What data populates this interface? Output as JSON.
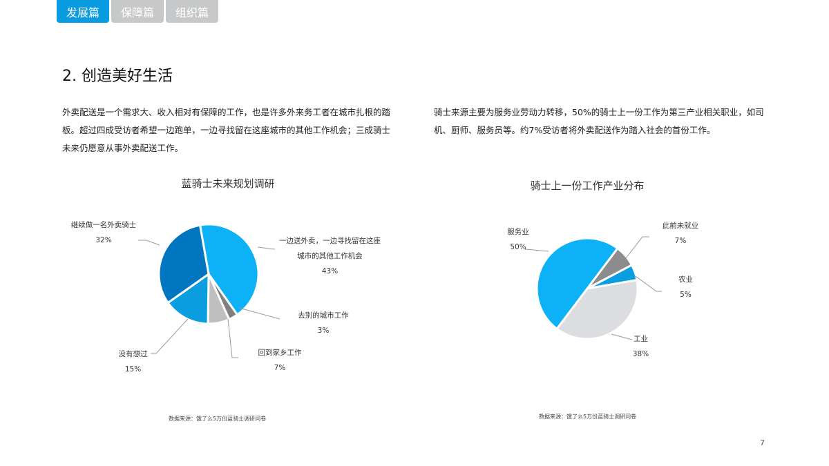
{
  "tabs": [
    {
      "label": "发展篇",
      "active": true
    },
    {
      "label": "保障篇"
    },
    {
      "label": "组织篇"
    }
  ],
  "heading": "2. 创造美好生活",
  "left_text": "外卖配送是一个需求大、收入相对有保障的工作，也是许多外来务工者在城市扎根的踏板。超过四成受访者希望一边跑单，一边寻找留在这座城市的其他工作机会；三成骑士未来仍愿意从事外卖配送工作。",
  "right_text": "骑士来源主要为服务业劳动力转移，50%的骑士上一份工作为第三产业相关职业，如司机、厨师、服务员等。约7%受访者将外卖配送作为踏入社会的首份工作。",
  "source": "数据来源：饿了么5万份蓝骑士调研问卷",
  "page_number": "7",
  "chart_data": [
    {
      "type": "pie",
      "title": "蓝骑士未来规划调研",
      "slices": [
        {
          "label": "一边送外卖，一边寻找留在这座城市的其他工作机会",
          "value": 43,
          "pct": "43%",
          "color": "#0db1f6"
        },
        {
          "label": "去别的城市工作",
          "value": 3,
          "pct": "3%",
          "color": "#808080"
        },
        {
          "label": "回到家乡工作",
          "value": 7,
          "pct": "7%",
          "color": "#bfbfbf"
        },
        {
          "label": "没有想过",
          "value": 15,
          "pct": "15%",
          "color": "#0a9de0"
        },
        {
          "label": "继续做一名外卖骑士",
          "value": 32,
          "pct": "32%",
          "color": "#0076c0"
        }
      ]
    },
    {
      "type": "pie",
      "title": "骑士上一份工作产业分布",
      "slices": [
        {
          "label": "此前未就业",
          "value": 7,
          "pct": "7%",
          "color": "#8c8c8e"
        },
        {
          "label": "农业",
          "value": 5,
          "pct": "5%",
          "color": "#0a9de0"
        },
        {
          "label": "工业",
          "value": 38,
          "pct": "38%",
          "color": "#dcdde0"
        },
        {
          "label": "服务业",
          "value": 50,
          "pct": "50%",
          "color": "#0db1f6"
        }
      ]
    }
  ]
}
